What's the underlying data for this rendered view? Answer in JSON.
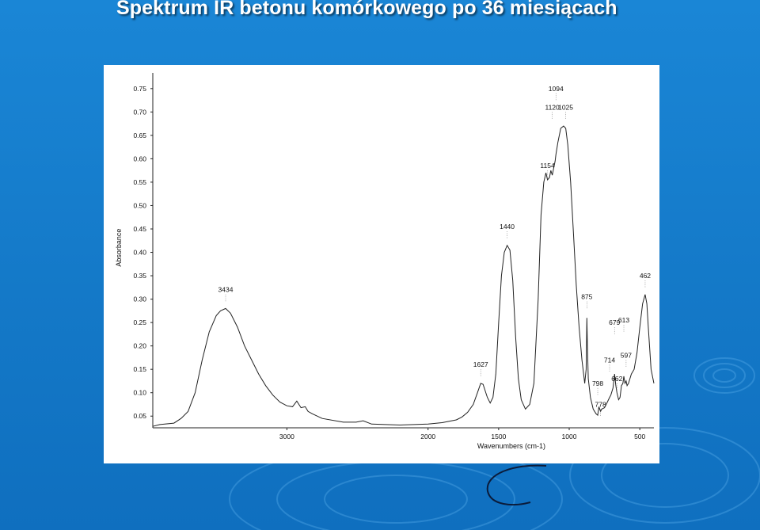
{
  "slide": {
    "title": "Spektrum IR betonu komórkowego po 36 miesiącach"
  },
  "colors": {
    "background": "#1479c8",
    "title": "#ffffff",
    "panel": "#ffffff",
    "line": "#222222"
  },
  "chart_data": {
    "type": "line",
    "title": "",
    "xlabel": "Wavenumbers (cm-1)",
    "ylabel": "Absorbance",
    "x_reversed": true,
    "xlim": [
      3950,
      400
    ],
    "ylim": [
      0.025,
      0.77
    ],
    "grid": false,
    "x_ticks": [
      {
        "value": 3000,
        "label": "3000"
      },
      {
        "value": 2000,
        "label": "2000"
      },
      {
        "value": 1500,
        "label": "1500"
      },
      {
        "value": 1000,
        "label": "1000"
      },
      {
        "value": 500,
        "label": "500"
      }
    ],
    "y_ticks": [
      {
        "value": 0.75,
        "label": "0.75"
      },
      {
        "value": 0.7,
        "label": "0.70"
      },
      {
        "value": 0.65,
        "label": "0.65"
      },
      {
        "value": 0.6,
        "label": "0.60"
      },
      {
        "value": 0.55,
        "label": "0.55"
      },
      {
        "value": 0.5,
        "label": "0.50"
      },
      {
        "value": 0.45,
        "label": "0.45"
      },
      {
        "value": 0.4,
        "label": "0.40"
      },
      {
        "value": 0.35,
        "label": "0.35"
      },
      {
        "value": 0.3,
        "label": "0.30"
      },
      {
        "value": 0.25,
        "label": "0.25"
      },
      {
        "value": 0.2,
        "label": "0.20"
      },
      {
        "value": 0.15,
        "label": "0.15"
      },
      {
        "value": 0.1,
        "label": "0.10"
      },
      {
        "value": 0.05,
        "label": "0.05"
      }
    ],
    "series": [
      {
        "x": [
          3950,
          3900,
          3800,
          3750,
          3700,
          3650,
          3600,
          3550,
          3500,
          3470,
          3434,
          3400,
          3350,
          3300,
          3250,
          3200,
          3150,
          3100,
          3050,
          3000,
          2960,
          2930,
          2900,
          2870,
          2850,
          2820,
          2750,
          2600,
          2510,
          2460,
          2400,
          2200,
          2100,
          2000,
          1900,
          1800,
          1760,
          1720,
          1680,
          1650,
          1627,
          1610,
          1580,
          1560,
          1540,
          1520,
          1500,
          1480,
          1460,
          1440,
          1420,
          1400,
          1380,
          1360,
          1340,
          1310,
          1280,
          1250,
          1220,
          1200,
          1180,
          1165,
          1154,
          1140,
          1130,
          1120,
          1110,
          1100,
          1094,
          1080,
          1060,
          1040,
          1025,
          1010,
          990,
          970,
          950,
          930,
          910,
          890,
          880,
          875,
          871,
          865,
          850,
          830,
          810,
          798,
          790,
          778,
          770,
          750,
          730,
          714,
          705,
          690,
          679,
          670,
          662,
          650,
          640,
          630,
          620,
          613,
          605,
          597,
          590,
          580,
          560,
          540,
          520,
          500,
          480,
          462,
          450,
          440,
          420,
          400
        ],
        "y": [
          0.028,
          0.032,
          0.035,
          0.045,
          0.06,
          0.1,
          0.17,
          0.23,
          0.265,
          0.275,
          0.28,
          0.27,
          0.24,
          0.2,
          0.17,
          0.14,
          0.115,
          0.095,
          0.08,
          0.072,
          0.07,
          0.082,
          0.068,
          0.07,
          0.06,
          0.055,
          0.045,
          0.037,
          0.037,
          0.04,
          0.033,
          0.031,
          0.032,
          0.033,
          0.036,
          0.042,
          0.048,
          0.058,
          0.075,
          0.1,
          0.12,
          0.118,
          0.09,
          0.078,
          0.09,
          0.14,
          0.25,
          0.35,
          0.4,
          0.415,
          0.405,
          0.34,
          0.22,
          0.13,
          0.085,
          0.065,
          0.075,
          0.12,
          0.3,
          0.48,
          0.55,
          0.57,
          0.555,
          0.56,
          0.575,
          0.565,
          0.58,
          0.595,
          0.61,
          0.635,
          0.665,
          0.67,
          0.665,
          0.63,
          0.55,
          0.44,
          0.33,
          0.24,
          0.17,
          0.12,
          0.15,
          0.26,
          0.2,
          0.13,
          0.09,
          0.065,
          0.055,
          0.052,
          0.07,
          0.06,
          0.065,
          0.068,
          0.08,
          0.09,
          0.095,
          0.11,
          0.14,
          0.115,
          0.1,
          0.085,
          0.09,
          0.115,
          0.12,
          0.135,
          0.12,
          0.125,
          0.115,
          0.12,
          0.14,
          0.15,
          0.185,
          0.24,
          0.29,
          0.31,
          0.29,
          0.24,
          0.15,
          0.12
        ]
      }
    ],
    "annotations": [
      {
        "label": "3434",
        "x": 3434,
        "y": 0.315
      },
      {
        "label": "1627",
        "x": 1627,
        "y": 0.155
      },
      {
        "label": "1440",
        "x": 1440,
        "y": 0.45
      },
      {
        "label": "1154",
        "x": 1154,
        "y": 0.58
      },
      {
        "label": "1120",
        "x": 1120,
        "y": 0.705
      },
      {
        "label": "1094",
        "x": 1094,
        "y": 0.745
      },
      {
        "label": "1025",
        "x": 1025,
        "y": 0.705
      },
      {
        "label": "875",
        "x": 875,
        "y": 0.3
      },
      {
        "label": "798",
        "x": 798,
        "y": 0.115
      },
      {
        "label": "778",
        "x": 778,
        "y": 0.07
      },
      {
        "label": "714",
        "x": 714,
        "y": 0.165
      },
      {
        "label": "679",
        "x": 679,
        "y": 0.245
      },
      {
        "label": "662",
        "x": 662,
        "y": 0.125
      },
      {
        "label": "613",
        "x": 613,
        "y": 0.25
      },
      {
        "label": "597",
        "x": 597,
        "y": 0.175
      },
      {
        "label": "462",
        "x": 462,
        "y": 0.345
      }
    ]
  }
}
